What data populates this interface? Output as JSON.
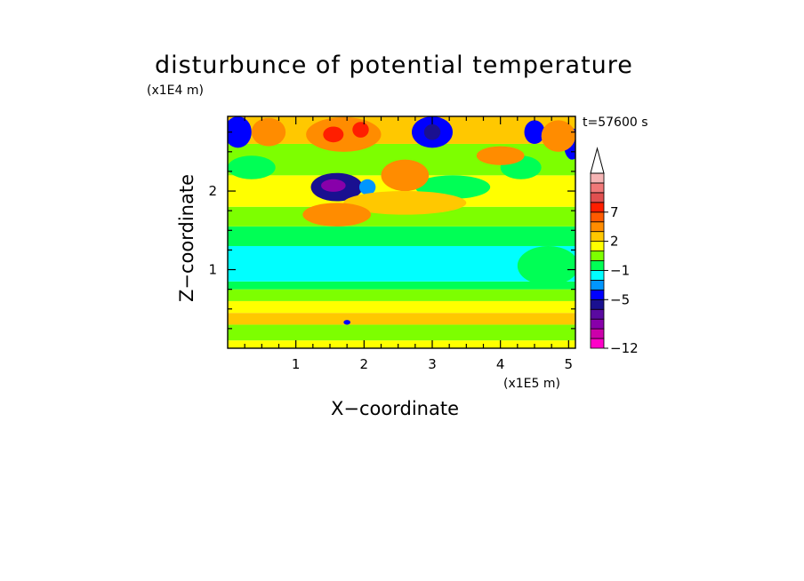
{
  "chart_data": {
    "type": "heatmap",
    "title": "disturbunce of potential temperature",
    "xlabel": "X−coordinate",
    "ylabel": "Z−coordinate",
    "x_unit": "(x1E5 m)",
    "y_unit": "(x1E4 m)",
    "annotation": "t=57600 s",
    "xlim": [
      0,
      5.1
    ],
    "ylim": [
      0,
      2.95
    ],
    "x_ticks": [
      1,
      2,
      3,
      4,
      5
    ],
    "y_ticks": [
      1,
      2
    ],
    "colorbar": {
      "tick_labels": [
        {
          "value": -12,
          "label": "−12"
        },
        {
          "value": -5,
          "label": "−5"
        },
        {
          "value": -1,
          "label": "−1"
        },
        {
          "value": 2,
          "label": "2"
        },
        {
          "value": 7,
          "label": "7"
        }
      ],
      "levels": [
        {
          "lo": -12,
          "hi": -10,
          "color": "#ff00c8"
        },
        {
          "lo": -10,
          "hi": -8,
          "color": "#cc00aa"
        },
        {
          "lo": -8,
          "hi": -7,
          "color": "#8800aa"
        },
        {
          "lo": -7,
          "hi": -6,
          "color": "#5a0aa0"
        },
        {
          "lo": -6,
          "hi": -5,
          "color": "#1a1090"
        },
        {
          "lo": -5,
          "hi": -3,
          "color": "#0000ff"
        },
        {
          "lo": -3,
          "hi": -2,
          "color": "#0096ff"
        },
        {
          "lo": -2,
          "hi": -1,
          "color": "#00ffff"
        },
        {
          "lo": -1,
          "hi": 0,
          "color": "#00ff55"
        },
        {
          "lo": 0,
          "hi": 1,
          "color": "#7dff00"
        },
        {
          "lo": 1,
          "hi": 2,
          "color": "#ffff00"
        },
        {
          "lo": 2,
          "hi": 3,
          "color": "#ffc800"
        },
        {
          "lo": 3,
          "hi": 5,
          "color": "#ff8c00"
        },
        {
          "lo": 5,
          "hi": 7,
          "color": "#ff5a00"
        },
        {
          "lo": 7,
          "hi": 8,
          "color": "#ff1e00"
        },
        {
          "lo": 8,
          "hi": 9,
          "color": "#e05050"
        },
        {
          "lo": 9,
          "hi": 10,
          "color": "#f07878"
        },
        {
          "lo": 10,
          "hi": 12,
          "color": "#f5b4b4"
        }
      ],
      "extend": "max"
    },
    "field_bands": [
      {
        "z0": 0.0,
        "z1": 0.1,
        "value": 1.5
      },
      {
        "z0": 0.1,
        "z1": 0.3,
        "value": 0.5
      },
      {
        "z0": 0.3,
        "z1": 0.45,
        "value": 2.5
      },
      {
        "z0": 0.45,
        "z1": 0.6,
        "value": 1.5
      },
      {
        "z0": 0.6,
        "z1": 0.75,
        "value": 0.5
      },
      {
        "z0": 0.75,
        "z1": 0.85,
        "value": -0.5
      },
      {
        "z0": 0.85,
        "z1": 1.3,
        "value": -1.5
      },
      {
        "z0": 1.3,
        "z1": 1.55,
        "value": -0.5
      },
      {
        "z0": 1.55,
        "z1": 1.8,
        "value": 0.5
      },
      {
        "z0": 1.8,
        "z1": 2.2,
        "value": 1.5
      },
      {
        "z0": 2.2,
        "z1": 2.6,
        "value": 0.5
      },
      {
        "z0": 2.6,
        "z1": 2.95,
        "value": 2.5
      }
    ],
    "field_features": [
      {
        "x": 1.6,
        "z": 2.05,
        "rx": 0.38,
        "rz": 0.18,
        "value": -5.5
      },
      {
        "x": 1.55,
        "z": 2.07,
        "rx": 0.18,
        "rz": 0.08,
        "value": -7.5
      },
      {
        "x": 2.05,
        "z": 2.05,
        "rx": 0.12,
        "rz": 0.1,
        "value": -2.5
      },
      {
        "x": 3.3,
        "z": 2.05,
        "rx": 0.55,
        "rz": 0.15,
        "value": -0.5
      },
      {
        "x": 2.6,
        "z": 2.2,
        "rx": 0.35,
        "rz": 0.2,
        "value": 4
      },
      {
        "x": 1.7,
        "z": 2.72,
        "rx": 0.55,
        "rz": 0.22,
        "value": 4
      },
      {
        "x": 1.55,
        "z": 2.72,
        "rx": 0.15,
        "rz": 0.1,
        "value": 7.5
      },
      {
        "x": 1.95,
        "z": 2.78,
        "rx": 0.12,
        "rz": 0.1,
        "value": 7.5
      },
      {
        "x": 3.0,
        "z": 2.75,
        "rx": 0.3,
        "rz": 0.2,
        "value": -4
      },
      {
        "x": 3.0,
        "z": 2.75,
        "rx": 0.12,
        "rz": 0.1,
        "value": -5.5
      },
      {
        "x": 0.15,
        "z": 2.75,
        "rx": 0.2,
        "rz": 0.2,
        "value": -4
      },
      {
        "x": 0.6,
        "z": 2.75,
        "rx": 0.25,
        "rz": 0.18,
        "value": 3
      },
      {
        "x": 0.35,
        "z": 2.3,
        "rx": 0.35,
        "rz": 0.15,
        "value": -0.5
      },
      {
        "x": 4.3,
        "z": 2.3,
        "rx": 0.3,
        "rz": 0.15,
        "value": -0.5
      },
      {
        "x": 4.0,
        "z": 2.45,
        "rx": 0.35,
        "rz": 0.12,
        "value": 3.5
      },
      {
        "x": 4.5,
        "z": 2.75,
        "rx": 0.15,
        "rz": 0.15,
        "value": -4
      },
      {
        "x": 5.05,
        "z": 2.6,
        "rx": 0.12,
        "rz": 0.2,
        "value": -4
      },
      {
        "x": 4.85,
        "z": 2.7,
        "rx": 0.25,
        "rz": 0.2,
        "value": 4
      },
      {
        "x": 2.6,
        "z": 1.85,
        "rx": 0.9,
        "rz": 0.15,
        "value": 2.5
      },
      {
        "x": 1.6,
        "z": 1.7,
        "rx": 0.5,
        "rz": 0.15,
        "value": 3
      },
      {
        "x": 4.7,
        "z": 1.05,
        "rx": 0.45,
        "rz": 0.25,
        "value": -0.5
      },
      {
        "x": 1.75,
        "z": 0.33,
        "rx": 0.05,
        "rz": 0.03,
        "value": -4
      }
    ]
  }
}
